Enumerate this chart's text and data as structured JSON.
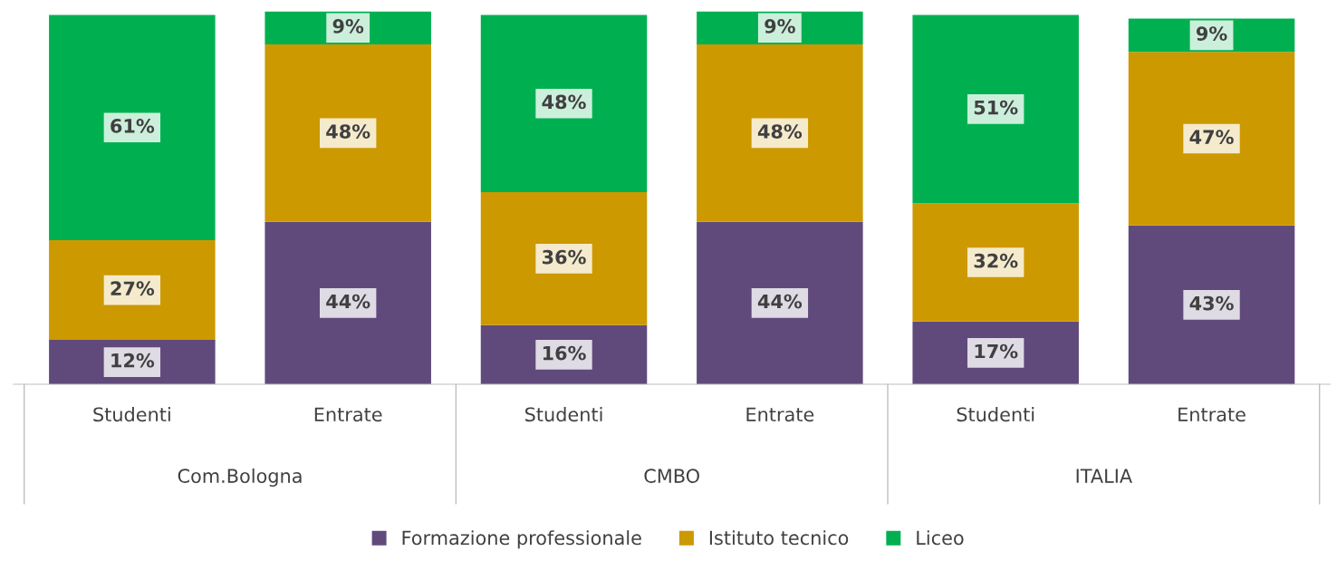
{
  "chart_data": {
    "type": "bar",
    "stacked": true,
    "legend": "bottom",
    "grid": false,
    "categories": [
      "Studenti",
      "Entrate",
      "Studenti",
      "Entrate",
      "Studenti",
      "Entrate"
    ],
    "series": [
      {
        "name": "Formazione professionale",
        "color": "#604a7b",
        "values": [
          12,
          44,
          16,
          44,
          17,
          43
        ],
        "value_labels": [
          "12%",
          "44%",
          "16%",
          "44%",
          "17%",
          "43%"
        ]
      },
      {
        "name": "Istituto tecnico",
        "color": "#cc9900",
        "values": [
          27,
          48,
          36,
          48,
          32,
          47
        ],
        "value_labels": [
          "27%",
          "48%",
          "36%",
          "48%",
          "32%",
          "47%"
        ]
      },
      {
        "name": "Liceo",
        "color": "#00b050",
        "values": [
          61,
          9,
          48,
          9,
          51,
          9
        ],
        "value_labels": [
          "61%",
          "9%",
          "48%",
          "9%",
          "51%",
          "9%"
        ]
      }
    ],
    "annotations": [
      "Com.Bologna",
      "CMBO",
      "ITALIA"
    ]
  }
}
